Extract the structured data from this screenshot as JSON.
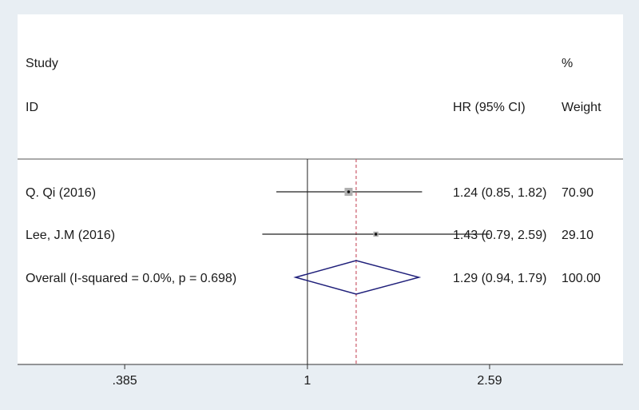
{
  "header": {
    "study_label": "Study",
    "id_label": "ID",
    "hr_label": "HR (95% CI)",
    "pct_label": "%",
    "weight_label": "Weight"
  },
  "chart_data": {
    "type": "forest",
    "axis": {
      "scale": "log",
      "ticks": [
        {
          "value": 0.385,
          "label": ".385"
        },
        {
          "value": 1,
          "label": "1"
        },
        {
          "value": 2.59,
          "label": "2.59"
        }
      ],
      "range": [
        0.22,
        5.2
      ]
    },
    "null_line": 1,
    "overall_line": 1.29,
    "studies": [
      {
        "label": "Q. Qi (2016)",
        "hr": 1.24,
        "lower": 0.85,
        "upper": 1.82,
        "weight": 70.9,
        "effect_text": "1.24 (0.85, 1.82)",
        "weight_text": "70.90"
      },
      {
        "label": "Lee, J.M (2016)",
        "hr": 1.43,
        "lower": 0.79,
        "upper": 2.59,
        "weight": 29.1,
        "effect_text": "1.43 (0.79, 2.59)",
        "weight_text": "29.10"
      }
    ],
    "overall": {
      "label": "Overall  (I-squared = 0.0%, p = 0.698)",
      "hr": 1.29,
      "lower": 0.94,
      "upper": 1.79,
      "effect_text": "1.29 (0.94, 1.79)",
      "weight_text": "100.00"
    },
    "colors": {
      "background": "#ffffff",
      "outer": "#e8eef3",
      "diamond": "#1f1f7a",
      "overall_line": "#c0394b",
      "box": "#b0b0b0"
    }
  }
}
